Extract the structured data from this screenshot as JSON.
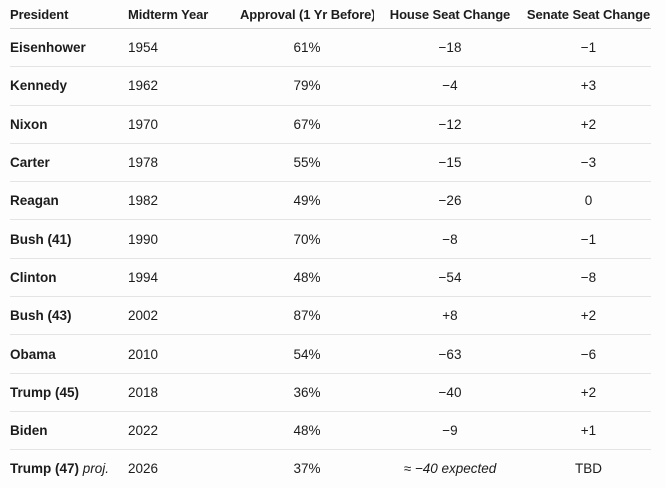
{
  "chart_data": {
    "type": "table",
    "columns": [
      "President",
      "Midterm Year",
      "Approval (1 Yr Before)",
      "House Seat Change",
      "Senate Seat Change"
    ],
    "rows": [
      {
        "president": "Eisenhower",
        "year": "1954",
        "approval": "61%",
        "house": "−18",
        "senate": "−1"
      },
      {
        "president": "Kennedy",
        "year": "1962",
        "approval": "79%",
        "house": "−4",
        "senate": "+3"
      },
      {
        "president": "Nixon",
        "year": "1970",
        "approval": "67%",
        "house": "−12",
        "senate": "+2"
      },
      {
        "president": "Carter",
        "year": "1978",
        "approval": "55%",
        "house": "−15",
        "senate": "−3"
      },
      {
        "president": "Reagan",
        "year": "1982",
        "approval": "49%",
        "house": "−26",
        "senate": "0"
      },
      {
        "president": "Bush (41)",
        "year": "1990",
        "approval": "70%",
        "house": "−8",
        "senate": "−1"
      },
      {
        "president": "Clinton",
        "year": "1994",
        "approval": "48%",
        "house": "−54",
        "senate": "−8"
      },
      {
        "president": "Bush (43)",
        "year": "2002",
        "approval": "87%",
        "house": "+8",
        "senate": "+2"
      },
      {
        "president": "Obama",
        "year": "2010",
        "approval": "54%",
        "house": "−63",
        "senate": "−6"
      },
      {
        "president": "Trump (45)",
        "year": "2018",
        "approval": "36%",
        "house": "−40",
        "senate": "+2"
      },
      {
        "president": "Biden",
        "year": "2022",
        "approval": "48%",
        "house": "−9",
        "senate": "+1"
      },
      {
        "president": "Trump (47)",
        "president_note": "proj.",
        "year": "2026",
        "approval": "37%",
        "house": "≈ −40 expected",
        "house_style": "italic",
        "senate": "TBD"
      }
    ]
  },
  "colors": {
    "background": "#fdfdfd",
    "text": "#1c1c1c",
    "header_divider": "#d2d2d2",
    "row_divider": "#e4e4e4"
  }
}
